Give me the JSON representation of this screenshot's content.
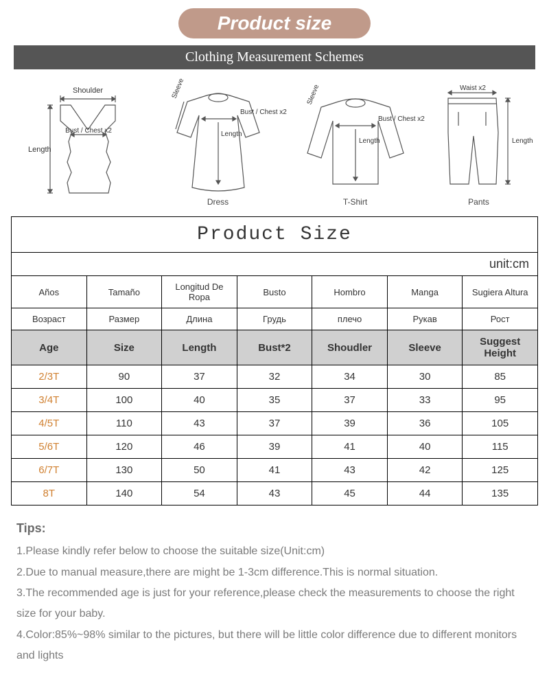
{
  "title_badge": "Product size",
  "schemes_bar": "Clothing Measurement Schemes",
  "diagrams": {
    "vest": {
      "shoulder": "Shoulder",
      "bust": "Bust / Chest x2",
      "length": "Length"
    },
    "dress": {
      "sleeve": "Sleeve",
      "bust": "Bust / Chest x2",
      "length": "Length",
      "caption": "Dress"
    },
    "tshirt": {
      "sleeve": "Sleeve",
      "bust": "Bust / Chest x2",
      "length": "Length",
      "caption": "T-Shirt"
    },
    "pants": {
      "waist": "Waist x2",
      "length": "Length",
      "caption": "Pants"
    }
  },
  "table": {
    "title": "Product Size",
    "unit": "unit:cm",
    "headers_es": [
      "Años",
      "Tamaño",
      "Longitud De Ropa",
      "Busto",
      "Hombro",
      "Manga",
      "Sugiera Altura"
    ],
    "headers_ru": [
      "Возраст",
      "Размер",
      "Длина",
      "Грудь",
      "плечо",
      "Рукав",
      "Рост"
    ],
    "headers_en": [
      "Age",
      "Size",
      "Length",
      "Bust*2",
      "Shoudler",
      "Sleeve",
      "Suggest Height"
    ],
    "rows": [
      {
        "age": "2/3T",
        "size": "90",
        "length": "37",
        "bust": "32",
        "shoulder": "34",
        "sleeve": "30",
        "height": "85"
      },
      {
        "age": "3/4T",
        "size": "100",
        "length": "40",
        "bust": "35",
        "shoulder": "37",
        "sleeve": "33",
        "height": "95"
      },
      {
        "age": "4/5T",
        "size": "110",
        "length": "43",
        "bust": "37",
        "shoulder": "39",
        "sleeve": "36",
        "height": "105"
      },
      {
        "age": "5/6T",
        "size": "120",
        "length": "46",
        "bust": "39",
        "shoulder": "41",
        "sleeve": "40",
        "height": "115"
      },
      {
        "age": "6/7T",
        "size": "130",
        "length": "50",
        "bust": "41",
        "shoulder": "43",
        "sleeve": "42",
        "height": "125"
      },
      {
        "age": "8T",
        "size": "140",
        "length": "54",
        "bust": "43",
        "shoulder": "45",
        "sleeve": "44",
        "height": "135"
      }
    ]
  },
  "tips": {
    "heading": "Tips:",
    "lines": [
      "1.Please kindly refer below to choose the suitable size(Unit:cm)",
      "2.Due to manual measure,there are might be 1-3cm difference.This is normal situation.",
      "3.The recommended age is just for your reference,please check the measurements to choose the right size for your baby.",
      "4.Color:85%~98% similar to the pictures, but there will be  little color difference due to different monitors and lights"
    ]
  },
  "styling": {
    "badge_bg": "#c09a8a",
    "badge_text": "#ffffff",
    "schemes_bg": "#555555",
    "en_header_bg": "#d0d0d0",
    "age_color": "#d08030",
    "tips_color": "#7a7a7a",
    "border_color": "#000000"
  }
}
